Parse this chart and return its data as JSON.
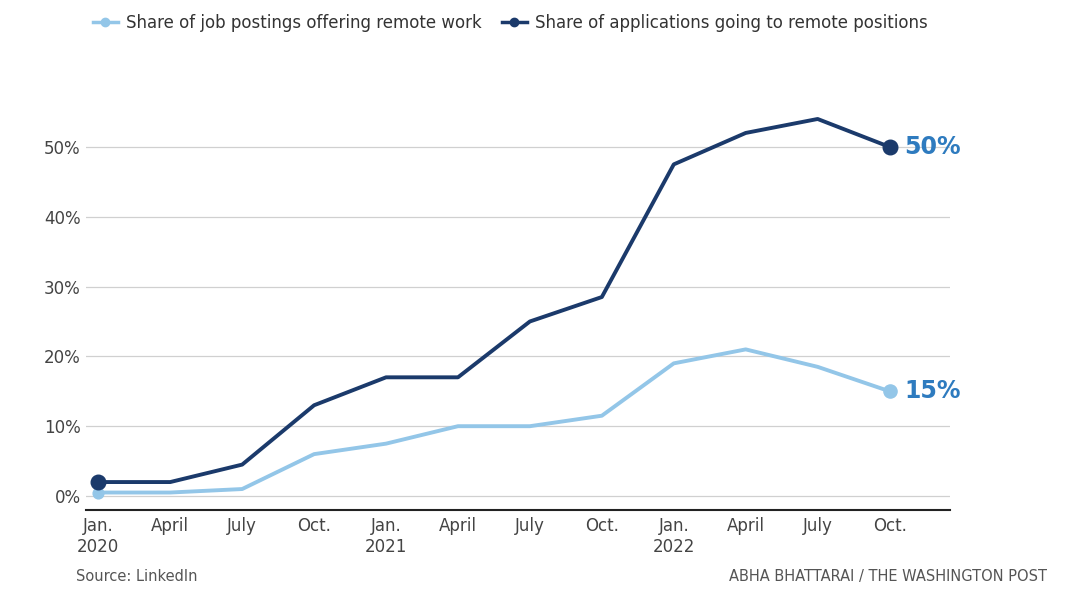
{
  "legend_labels": [
    "Share of job postings offering remote work",
    "Share of applications going to remote positions"
  ],
  "light_blue_color": "#93c6e8",
  "dark_blue_color": "#1b3a6b",
  "annotation_color": "#2e7bbf",
  "x_tick_labels": [
    "Jan.\n2020",
    "April",
    "July",
    "Oct.",
    "Jan.\n2021",
    "April",
    "July",
    "Oct.",
    "Jan.\n2022",
    "April",
    "July",
    "Oct."
  ],
  "x_tick_positions": [
    0,
    3,
    6,
    9,
    12,
    15,
    18,
    21,
    24,
    27,
    30,
    33
  ],
  "postings_data": {
    "x": [
      0,
      3,
      6,
      9,
      12,
      15,
      18,
      21,
      24,
      27,
      30,
      33
    ],
    "y": [
      0.5,
      0.5,
      1.0,
      6.0,
      7.5,
      10.0,
      10.0,
      11.5,
      19.0,
      21.0,
      18.5,
      15.0
    ]
  },
  "applications_data": {
    "x": [
      0,
      3,
      6,
      9,
      12,
      15,
      18,
      21,
      24,
      27,
      30,
      33
    ],
    "y": [
      2.0,
      2.0,
      4.5,
      13.0,
      17.0,
      17.0,
      25.0,
      28.5,
      47.5,
      52.0,
      54.0,
      50.0
    ]
  },
  "ylim": [
    -2,
    60
  ],
  "yticks": [
    0,
    10,
    20,
    30,
    40,
    50
  ],
  "source_text": "Source: LinkedIn",
  "credit_text": "ABHA BHATTARAI / THE WASHINGTON POST",
  "end_label_postings": "15%",
  "end_label_applications": "50%",
  "bg_color": "#ffffff",
  "grid_color": "#d0d0d0"
}
